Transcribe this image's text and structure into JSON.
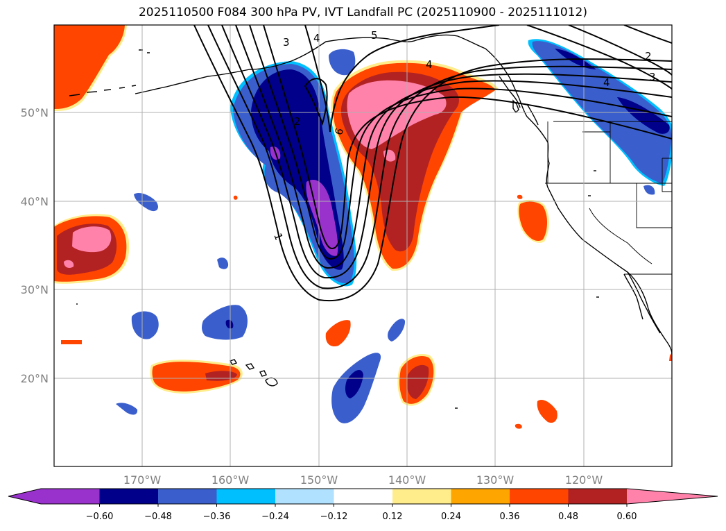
{
  "title": "2025110500 F084 300 hPa PV, IVT Landfall PC (2025110900 - 2025111012)",
  "map": {
    "lon_labels": [
      "170°W",
      "160°W",
      "150°W",
      "140°W",
      "130°W",
      "120°W"
    ],
    "lat_labels": [
      "50°N",
      "40°N",
      "30°N",
      "20°N"
    ],
    "contour_labels": [
      "1",
      "2",
      "3",
      "4",
      "5",
      "6",
      "4",
      "2",
      "3",
      "4"
    ]
  },
  "colorbar": {
    "tick_labels": [
      "−0.60",
      "−0.48",
      "−0.36",
      "−0.24",
      "−0.12",
      "0.12",
      "0.24",
      "0.36",
      "0.48",
      "0.60"
    ],
    "colors": [
      "#9932cc",
      "#00008b",
      "#3a5fcd",
      "#00bfff",
      "#b0e2ff",
      "#ffffff",
      "#ffec8b",
      "#ffa500",
      "#ff4500",
      "#b22222",
      "#ff82ab"
    ]
  }
}
